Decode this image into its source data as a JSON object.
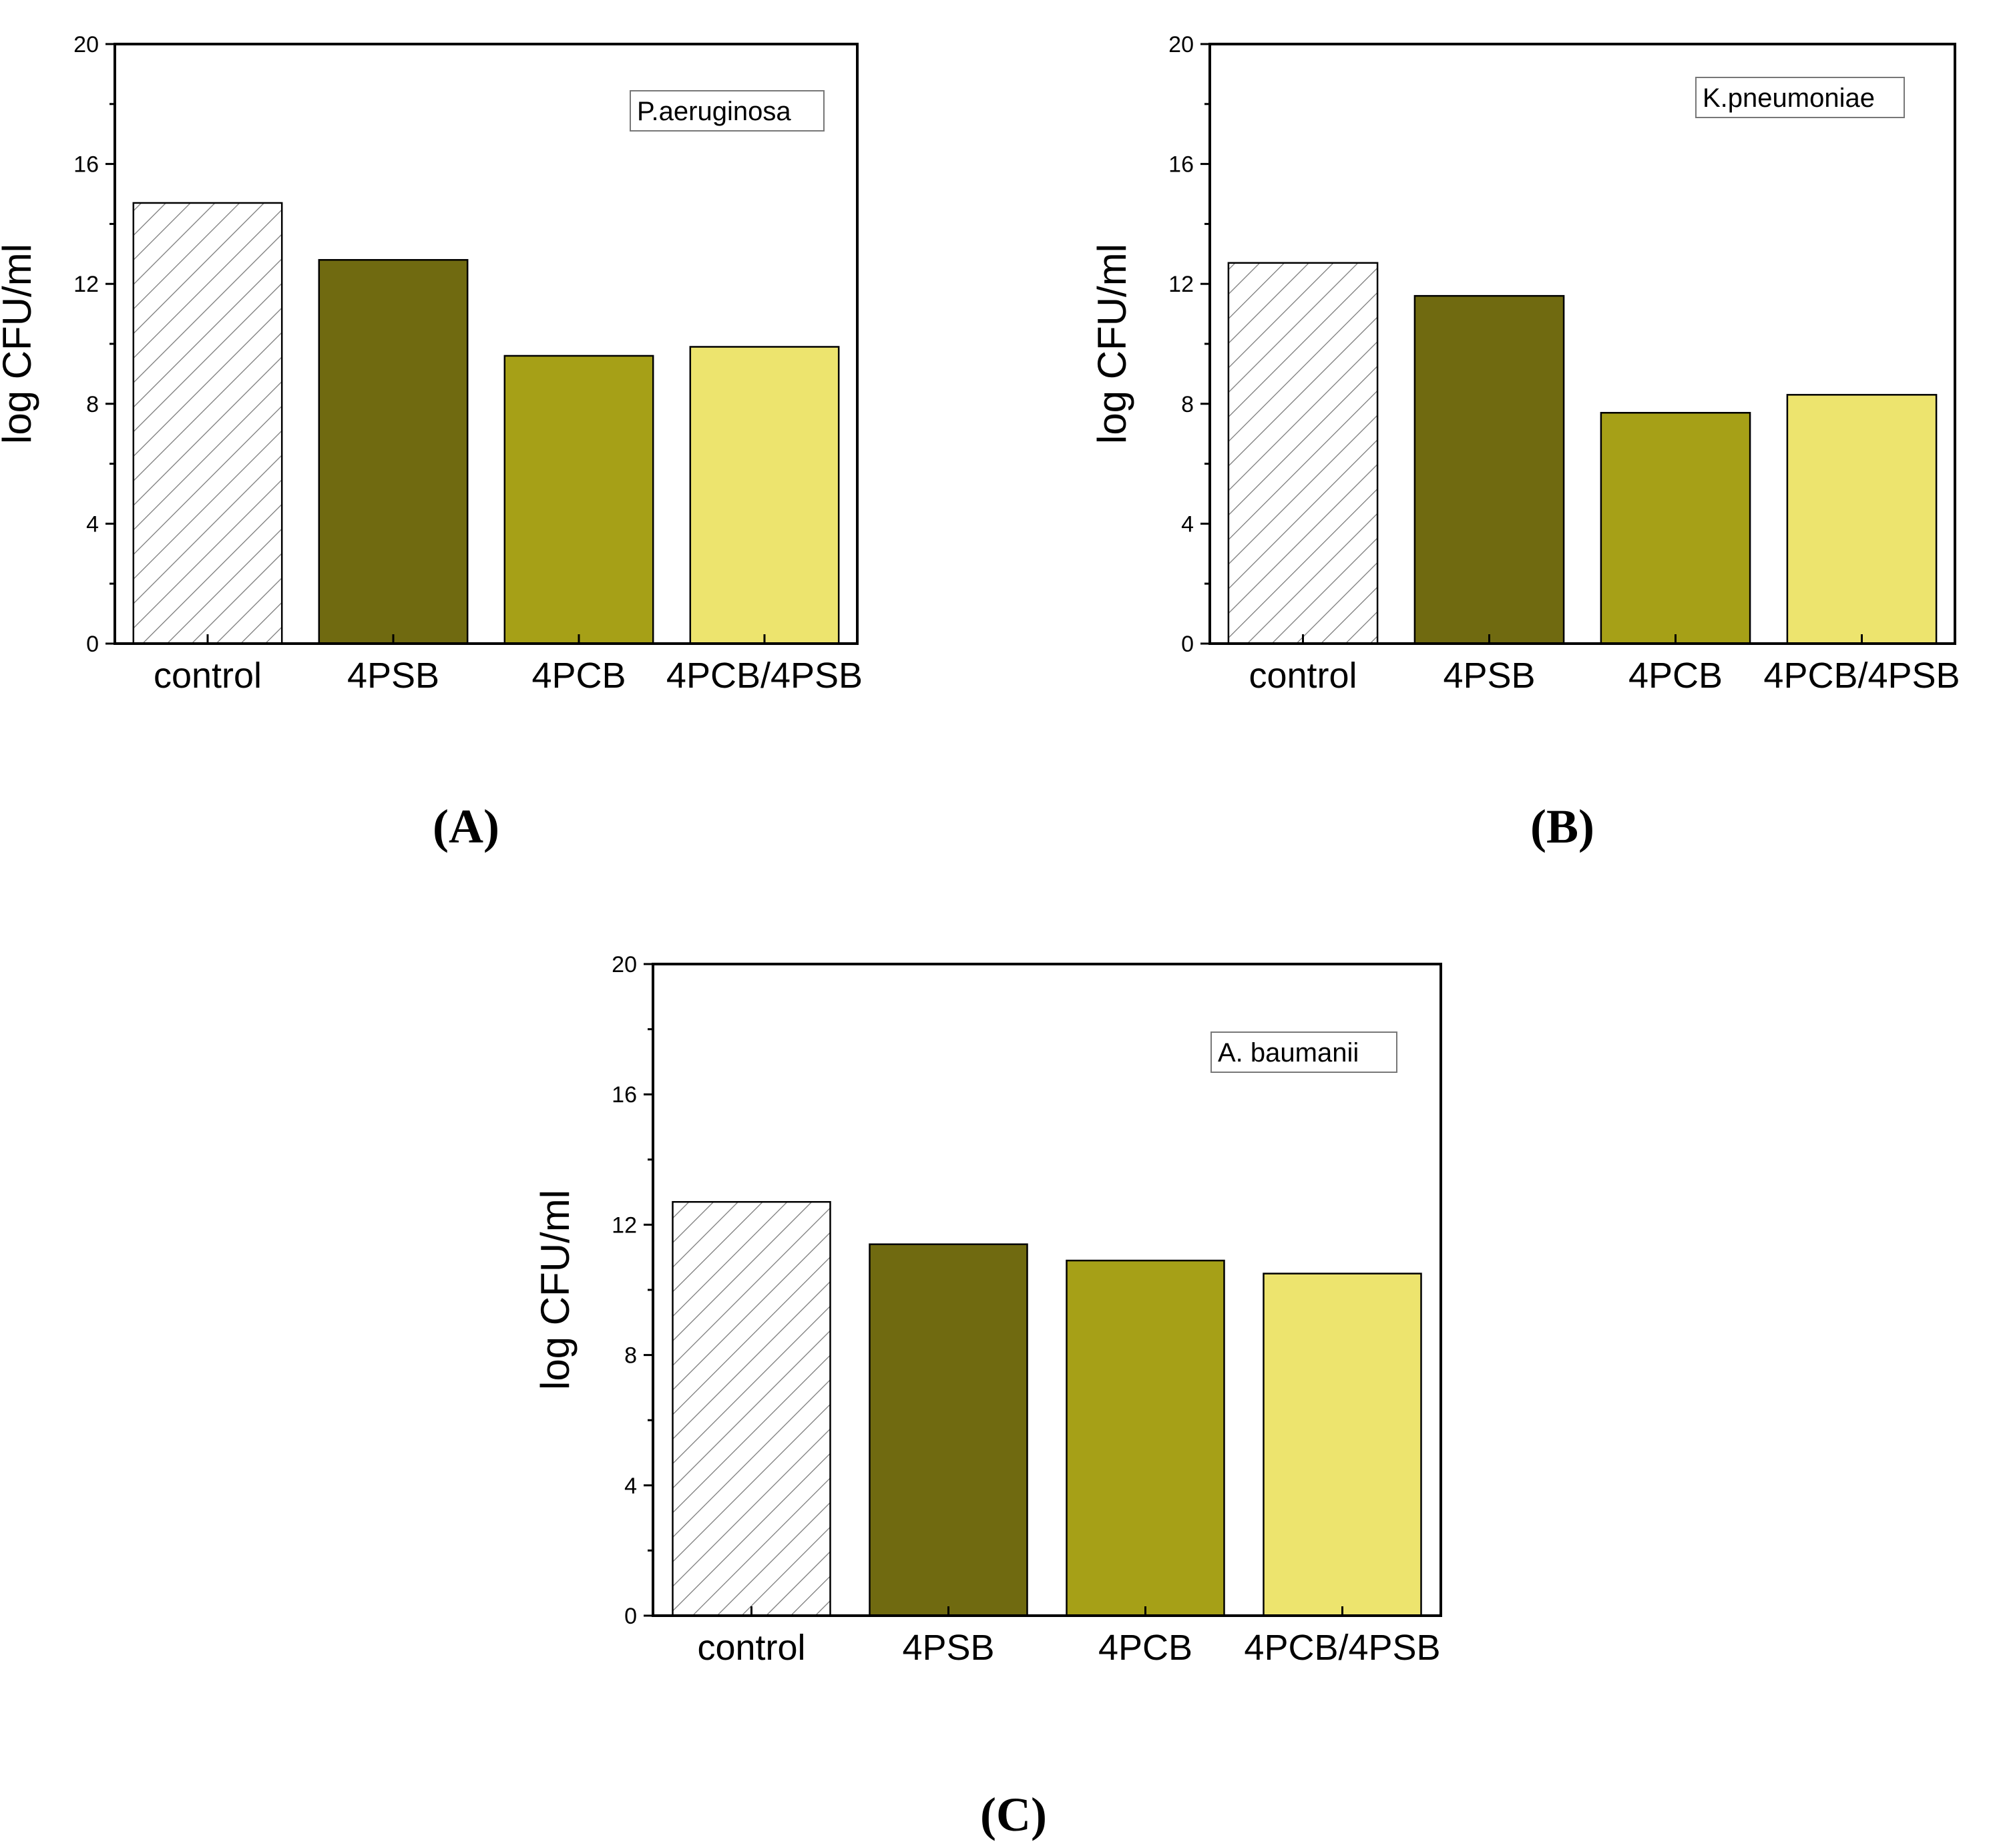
{
  "chart_data": [
    {
      "type": "bar",
      "panel_label": "A",
      "legend": "P.aeruginosa",
      "ylabel": "log CFU/ml",
      "ylim": [
        0,
        20
      ],
      "yticks": [
        "0",
        "4",
        "8",
        "12",
        "16",
        "20"
      ],
      "categories": [
        "control",
        "4PSB",
        "4PCB",
        "4PCB/4PSB"
      ],
      "values": [
        14.7,
        12.8,
        9.6,
        9.9
      ],
      "colors": [
        "hatch",
        "#706A10",
        "#A6A017",
        "#EDE46E"
      ]
    },
    {
      "type": "bar",
      "panel_label": "B",
      "legend": "K.pneumoniae",
      "ylabel": "log CFU/ml",
      "ylim": [
        0,
        20
      ],
      "yticks": [
        "0",
        "4",
        "8",
        "12",
        "16",
        "20"
      ],
      "categories": [
        "control",
        "4PSB",
        "4PCB",
        "4PCB/4PSB"
      ],
      "values": [
        12.7,
        11.6,
        7.7,
        8.3
      ],
      "colors": [
        "hatch",
        "#706A10",
        "#A6A017",
        "#EDE46E"
      ]
    },
    {
      "type": "bar",
      "panel_label": "C",
      "legend": "A. baumanii",
      "ylabel": "log CFU/ml",
      "ylim": [
        0,
        20
      ],
      "yticks": [
        "0",
        "4",
        "8",
        "12",
        "16",
        "20"
      ],
      "categories": [
        "control",
        "4PSB",
        "4PCB",
        "4PCB/4PSB"
      ],
      "values": [
        12.7,
        11.4,
        10.9,
        10.5
      ],
      "colors": [
        "hatch",
        "#706A10",
        "#A6A017",
        "#EDE46E"
      ]
    }
  ]
}
